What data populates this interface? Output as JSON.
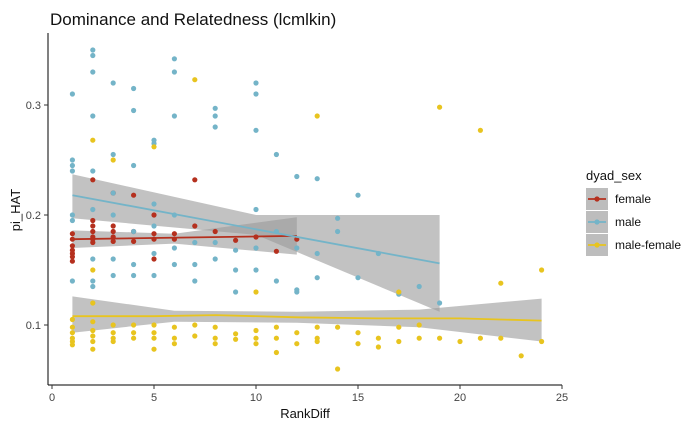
{
  "chart_data": {
    "type": "scatter",
    "title": "Dominance and Relatedness (lcmlkin)",
    "xlabel": "RankDiff",
    "ylabel": "pi_HAT",
    "xlim": [
      0,
      25
    ],
    "ylim": [
      0.03,
      0.36
    ],
    "xticks": [
      0,
      5,
      10,
      15,
      20,
      25
    ],
    "yticks": [
      0.1,
      0.2,
      0.3
    ],
    "ytick_labels": [
      "0.1",
      "0.2",
      "0.3"
    ],
    "grid": false,
    "legend": {
      "title": "dyad_sex",
      "placement": "right",
      "entries": [
        "female",
        "male",
        "male-female"
      ]
    },
    "series": [
      {
        "name": "female",
        "color": "#b5301e",
        "points": [
          [
            1,
            0.183
          ],
          [
            1,
            0.178
          ],
          [
            1,
            0.172
          ],
          [
            1,
            0.168
          ],
          [
            1,
            0.165
          ],
          [
            1,
            0.162
          ],
          [
            1,
            0.158
          ],
          [
            2,
            0.232
          ],
          [
            2,
            0.195
          ],
          [
            2,
            0.19
          ],
          [
            2,
            0.185
          ],
          [
            2,
            0.18
          ],
          [
            2,
            0.178
          ],
          [
            2,
            0.175
          ],
          [
            3,
            0.22
          ],
          [
            3,
            0.19
          ],
          [
            3,
            0.185
          ],
          [
            3,
            0.18
          ],
          [
            3,
            0.176
          ],
          [
            4,
            0.218
          ],
          [
            4,
            0.185
          ],
          [
            4,
            0.176
          ],
          [
            5,
            0.2
          ],
          [
            5,
            0.183
          ],
          [
            5,
            0.178
          ],
          [
            5,
            0.16
          ],
          [
            6,
            0.183
          ],
          [
            6,
            0.178
          ],
          [
            7,
            0.232
          ],
          [
            7,
            0.19
          ],
          [
            8,
            0.185
          ],
          [
            9,
            0.177
          ],
          [
            10,
            0.18
          ],
          [
            11,
            0.167
          ],
          [
            12,
            0.178
          ]
        ],
        "fit": [
          [
            1,
            0.178
          ],
          [
            12,
            0.181
          ]
        ],
        "ci_upper": [
          [
            1,
            0.186
          ],
          [
            6,
            0.183
          ],
          [
            12,
            0.198
          ]
        ],
        "ci_lower": [
          [
            1,
            0.17
          ],
          [
            6,
            0.174
          ],
          [
            12,
            0.164
          ]
        ]
      },
      {
        "name": "male",
        "color": "#74b4c8",
        "points": [
          [
            1,
            0.31
          ],
          [
            1,
            0.25
          ],
          [
            1,
            0.245
          ],
          [
            1,
            0.24
          ],
          [
            1,
            0.2
          ],
          [
            1,
            0.195
          ],
          [
            1,
            0.14
          ],
          [
            2,
            0.35
          ],
          [
            2,
            0.345
          ],
          [
            2,
            0.33
          ],
          [
            2,
            0.29
          ],
          [
            2,
            0.24
          ],
          [
            2,
            0.205
          ],
          [
            2,
            0.16
          ],
          [
            2,
            0.14
          ],
          [
            2,
            0.135
          ],
          [
            3,
            0.32
          ],
          [
            3,
            0.255
          ],
          [
            3,
            0.22
          ],
          [
            3,
            0.2
          ],
          [
            3,
            0.16
          ],
          [
            3,
            0.145
          ],
          [
            4,
            0.315
          ],
          [
            4,
            0.295
          ],
          [
            4,
            0.245
          ],
          [
            4,
            0.185
          ],
          [
            4,
            0.155
          ],
          [
            4,
            0.145
          ],
          [
            5,
            0.268
          ],
          [
            5,
            0.265
          ],
          [
            5,
            0.21
          ],
          [
            5,
            0.19
          ],
          [
            5,
            0.165
          ],
          [
            5,
            0.145
          ],
          [
            6,
            0.342
          ],
          [
            6,
            0.33
          ],
          [
            6,
            0.29
          ],
          [
            6,
            0.2
          ],
          [
            6,
            0.17
          ],
          [
            6,
            0.155
          ],
          [
            7,
            0.175
          ],
          [
            7,
            0.155
          ],
          [
            7,
            0.14
          ],
          [
            8,
            0.297
          ],
          [
            8,
            0.29
          ],
          [
            8,
            0.28
          ],
          [
            8,
            0.175
          ],
          [
            8,
            0.16
          ],
          [
            9,
            0.168
          ],
          [
            9,
            0.15
          ],
          [
            9,
            0.13
          ],
          [
            10,
            0.32
          ],
          [
            10,
            0.31
          ],
          [
            10,
            0.277
          ],
          [
            10,
            0.205
          ],
          [
            10,
            0.17
          ],
          [
            10,
            0.15
          ],
          [
            11,
            0.255
          ],
          [
            11,
            0.185
          ],
          [
            11,
            0.14
          ],
          [
            12,
            0.235
          ],
          [
            12,
            0.17
          ],
          [
            12,
            0.132
          ],
          [
            12,
            0.13
          ],
          [
            13,
            0.233
          ],
          [
            13,
            0.165
          ],
          [
            13,
            0.143
          ],
          [
            14,
            0.197
          ],
          [
            14,
            0.185
          ],
          [
            15,
            0.218
          ],
          [
            15,
            0.143
          ],
          [
            16,
            0.165
          ],
          [
            17,
            0.128
          ],
          [
            18,
            0.135
          ],
          [
            19,
            0.12
          ]
        ],
        "fit": [
          [
            1,
            0.218
          ],
          [
            19,
            0.156
          ]
        ],
        "ci_upper": [
          [
            1,
            0.237
          ],
          [
            10,
            0.2
          ],
          [
            19,
            0.2
          ]
        ],
        "ci_lower": [
          [
            1,
            0.197
          ],
          [
            10,
            0.182
          ],
          [
            19,
            0.112
          ]
        ]
      },
      {
        "name": "male-female",
        "color": "#e8c41f",
        "points": [
          [
            1,
            0.105
          ],
          [
            1,
            0.098
          ],
          [
            1,
            0.093
          ],
          [
            1,
            0.088
          ],
          [
            1,
            0.085
          ],
          [
            1,
            0.082
          ],
          [
            2,
            0.268
          ],
          [
            2,
            0.15
          ],
          [
            2,
            0.12
          ],
          [
            2,
            0.103
          ],
          [
            2,
            0.095
          ],
          [
            2,
            0.09
          ],
          [
            2,
            0.085
          ],
          [
            2,
            0.078
          ],
          [
            3,
            0.25
          ],
          [
            3,
            0.1
          ],
          [
            3,
            0.093
          ],
          [
            3,
            0.088
          ],
          [
            3,
            0.085
          ],
          [
            4,
            0.1
          ],
          [
            4,
            0.093
          ],
          [
            4,
            0.088
          ],
          [
            5,
            0.262
          ],
          [
            5,
            0.1
          ],
          [
            5,
            0.093
          ],
          [
            5,
            0.088
          ],
          [
            5,
            0.078
          ],
          [
            6,
            0.098
          ],
          [
            6,
            0.088
          ],
          [
            6,
            0.083
          ],
          [
            7,
            0.323
          ],
          [
            7,
            0.1
          ],
          [
            7,
            0.09
          ],
          [
            8,
            0.098
          ],
          [
            8,
            0.088
          ],
          [
            8,
            0.083
          ],
          [
            9,
            0.092
          ],
          [
            9,
            0.087
          ],
          [
            10,
            0.13
          ],
          [
            10,
            0.095
          ],
          [
            10,
            0.088
          ],
          [
            10,
            0.083
          ],
          [
            11,
            0.098
          ],
          [
            11,
            0.088
          ],
          [
            11,
            0.075
          ],
          [
            12,
            0.093
          ],
          [
            12,
            0.083
          ],
          [
            13,
            0.29
          ],
          [
            13,
            0.098
          ],
          [
            13,
            0.088
          ],
          [
            13,
            0.085
          ],
          [
            14,
            0.098
          ],
          [
            14,
            0.06
          ],
          [
            15,
            0.093
          ],
          [
            15,
            0.083
          ],
          [
            16,
            0.088
          ],
          [
            16,
            0.08
          ],
          [
            17,
            0.13
          ],
          [
            17,
            0.098
          ],
          [
            17,
            0.085
          ],
          [
            18,
            0.1
          ],
          [
            18,
            0.088
          ],
          [
            19,
            0.298
          ],
          [
            19,
            0.088
          ],
          [
            20,
            0.085
          ],
          [
            21,
            0.277
          ],
          [
            21,
            0.088
          ],
          [
            22,
            0.138
          ],
          [
            22,
            0.088
          ],
          [
            23,
            0.072
          ],
          [
            24,
            0.15
          ],
          [
            24,
            0.085
          ]
        ],
        "fit": [
          [
            1,
            0.108
          ],
          [
            5,
            0.108
          ],
          [
            8,
            0.109
          ],
          [
            12,
            0.107
          ],
          [
            16,
            0.106
          ],
          [
            20,
            0.106
          ],
          [
            24,
            0.104
          ]
        ],
        "ci_upper": [
          [
            1,
            0.126
          ],
          [
            6,
            0.113
          ],
          [
            12,
            0.112
          ],
          [
            18,
            0.114
          ],
          [
            24,
            0.124
          ]
        ],
        "ci_lower": [
          [
            1,
            0.093
          ],
          [
            6,
            0.103
          ],
          [
            12,
            0.102
          ],
          [
            18,
            0.098
          ],
          [
            24,
            0.085
          ]
        ]
      }
    ]
  }
}
